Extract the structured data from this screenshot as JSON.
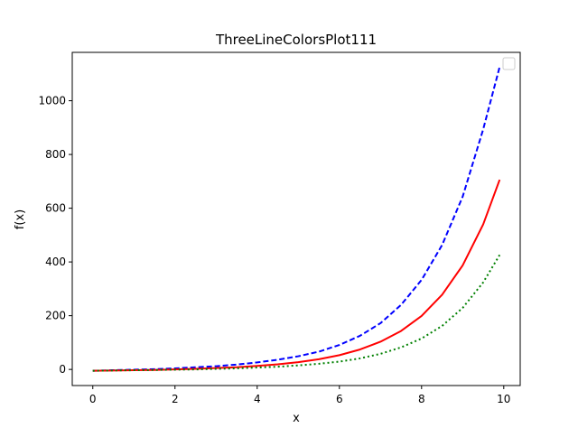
{
  "chart_data": {
    "type": "line",
    "title": "ThreeLineColorsPlot111",
    "xlabel": "x",
    "ylabel": "f(x)",
    "xlim": [
      -0.5,
      10.4
    ],
    "ylim": [
      -60,
      1180
    ],
    "xticks": [
      0,
      2,
      4,
      6,
      8,
      10
    ],
    "yticks": [
      0,
      200,
      400,
      600,
      800,
      1000
    ],
    "grid": false,
    "legend": {
      "placement": "upper right",
      "entries": []
    },
    "x": [
      0,
      0.5,
      1,
      1.5,
      2,
      2.5,
      3,
      3.5,
      4,
      4.5,
      5,
      5.5,
      6,
      6.5,
      7,
      7.5,
      8,
      8.5,
      9,
      9.5,
      9.9
    ],
    "series": [
      {
        "color": "#0000ff",
        "linestyle": "dashed",
        "values": [
          -5,
          -3,
          -1,
          1,
          4,
          8,
          12,
          18,
          26,
          36,
          49,
          66,
          91,
          125,
          172,
          240,
          333,
          463,
          643,
          894,
          1126
        ]
      },
      {
        "color": "#ff0000",
        "linestyle": "solid",
        "values": [
          -5,
          -4,
          -3,
          -2,
          0,
          2,
          5,
          8,
          13,
          19,
          27,
          38,
          53,
          74,
          103,
          143,
          199,
          278,
          387,
          540,
          706
        ]
      },
      {
        "color": "#008000",
        "linestyle": "dotted",
        "values": [
          -5,
          -4,
          -3,
          -2,
          -1,
          0,
          2,
          4,
          7,
          10,
          15,
          21,
          29,
          41,
          58,
          82,
          115,
          162,
          229,
          324,
          426
        ]
      }
    ]
  }
}
